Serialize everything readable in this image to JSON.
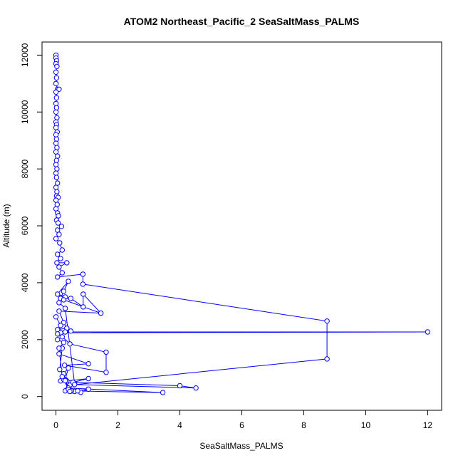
{
  "chart_data": {
    "type": "line",
    "title": "ATOM2 Northeast_Pacific_2 SeaSaltMass_PALMS",
    "xlabel": "SeaSaltMass_PALMS",
    "ylabel": "Altitude (m)",
    "xlim": [
      -0.45,
      12.45
    ],
    "ylim": [
      -484,
      12460
    ],
    "xticks": [
      0,
      2,
      4,
      6,
      8,
      10,
      12
    ],
    "yticks": [
      0,
      2000,
      4000,
      6000,
      8000,
      10000,
      12000
    ],
    "grid": false,
    "legend": "none",
    "marker": "open-circle",
    "series": [
      {
        "color": "#0000ff",
        "points": [
          [
            0.0,
            12000
          ],
          [
            0.0,
            11900
          ],
          [
            0.02,
            11800
          ],
          [
            0.0,
            11700
          ],
          [
            0.03,
            11600
          ],
          [
            0.0,
            11400
          ],
          [
            0.02,
            11200
          ],
          [
            0.0,
            11000
          ],
          [
            0.05,
            10800
          ],
          [
            0.1,
            10800
          ],
          [
            0.0,
            10700
          ],
          [
            0.02,
            10500
          ],
          [
            0.0,
            10300
          ],
          [
            0.02,
            10150
          ],
          [
            0.0,
            10000
          ],
          [
            0.03,
            9800
          ],
          [
            0.0,
            9650
          ],
          [
            0.02,
            9550
          ],
          [
            0.0,
            9450
          ],
          [
            0.04,
            9300
          ],
          [
            0.0,
            9200
          ],
          [
            0.02,
            9050
          ],
          [
            0.0,
            8900
          ],
          [
            0.03,
            8750
          ],
          [
            0.0,
            8600
          ],
          [
            0.05,
            8450
          ],
          [
            0.02,
            8300
          ],
          [
            0.0,
            8150
          ],
          [
            0.03,
            8000
          ],
          [
            0.0,
            7850
          ],
          [
            0.02,
            7700
          ],
          [
            0.05,
            7500
          ],
          [
            0.0,
            7350
          ],
          [
            0.03,
            7200
          ],
          [
            0.02,
            7050
          ],
          [
            0.07,
            7000
          ],
          [
            0.0,
            6900
          ],
          [
            0.04,
            6750
          ],
          [
            0.0,
            6600
          ],
          [
            0.05,
            6450
          ],
          [
            0.08,
            6350
          ],
          [
            0.02,
            6200
          ],
          [
            0.07,
            6100
          ],
          [
            0.18,
            5980
          ],
          [
            0.05,
            5850
          ],
          [
            0.1,
            5700
          ],
          [
            0.0,
            5550
          ],
          [
            0.12,
            5400
          ],
          [
            0.2,
            5150
          ],
          [
            0.05,
            5000
          ],
          [
            0.15,
            4850
          ],
          [
            0.03,
            4700
          ],
          [
            0.35,
            4700
          ],
          [
            0.1,
            4550
          ],
          [
            0.2,
            4350
          ],
          [
            0.05,
            4200
          ],
          [
            0.87,
            4300
          ],
          [
            0.87,
            3950
          ],
          [
            8.75,
            2650
          ],
          [
            8.75,
            1320
          ],
          [
            0.45,
            400
          ],
          [
            0.6,
            450
          ],
          [
            0.3,
            3100
          ],
          [
            0.1,
            3300
          ],
          [
            0.3,
            3500
          ],
          [
            0.05,
            3600
          ],
          [
            0.4,
            4050
          ],
          [
            0.25,
            3700
          ],
          [
            0.15,
            3450
          ],
          [
            0.48,
            3450
          ],
          [
            0.88,
            3150
          ],
          [
            0.88,
            3600
          ],
          [
            1.45,
            2930
          ],
          [
            0.25,
            3400
          ],
          [
            1.45,
            2930
          ],
          [
            0.1,
            3000
          ],
          [
            0.25,
            2600
          ],
          [
            0.35,
            2400
          ],
          [
            0.05,
            2350
          ],
          [
            0.3,
            2270
          ],
          [
            12.0,
            2270
          ],
          [
            0.15,
            2240
          ],
          [
            0.48,
            2300
          ],
          [
            0.05,
            2200
          ],
          [
            0.2,
            2100
          ],
          [
            0.45,
            1850
          ],
          [
            1.62,
            1560
          ],
          [
            1.62,
            850
          ],
          [
            0.28,
            1100
          ],
          [
            1.05,
            1150
          ],
          [
            0.1,
            1500
          ],
          [
            0.2,
            1700
          ],
          [
            0.12,
            950
          ],
          [
            0.25,
            800
          ],
          [
            0.4,
            1000
          ],
          [
            0.3,
            600
          ],
          [
            0.15,
            550
          ],
          [
            0.35,
            550
          ],
          [
            1.05,
            630
          ],
          [
            0.55,
            500
          ],
          [
            4.0,
            380
          ],
          [
            4.52,
            300
          ],
          [
            0.6,
            420
          ],
          [
            0.4,
            300
          ],
          [
            3.45,
            140
          ],
          [
            0.5,
            200
          ],
          [
            0.6,
            180
          ],
          [
            0.3,
            200
          ],
          [
            0.8,
            150
          ],
          [
            1.05,
            260
          ],
          [
            0.7,
            200
          ],
          [
            0.4,
            250
          ],
          [
            0.25,
            600
          ],
          [
            0.5,
            200
          ],
          [
            0.45,
            180
          ],
          [
            0.3,
            560
          ],
          [
            0.2,
            700
          ],
          [
            0.1,
            1700
          ],
          [
            0.25,
            1900
          ],
          [
            0.05,
            2000
          ],
          [
            0.15,
            2500
          ],
          [
            0.0,
            2800
          ]
        ]
      }
    ]
  }
}
